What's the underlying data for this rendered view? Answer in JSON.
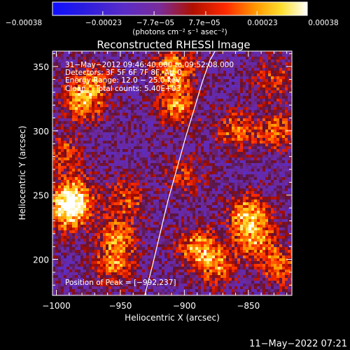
{
  "chart_data": {
    "type": "heatmap",
    "title": "Reconstructed RHESSI Image",
    "xlabel": "Heliocentric X (arcsec)",
    "ylabel": "Heliocentric Y (arcsec)",
    "xlim": [
      -1003,
      -816
    ],
    "ylim": [
      172,
      362
    ],
    "x_ticks": [
      -1000,
      -950,
      -900,
      -850
    ],
    "x_tick_labels": [
      "−1000",
      "−950",
      "−900",
      "−850"
    ],
    "y_ticks": [
      200,
      250,
      300,
      350
    ],
    "y_tick_labels": [
      "200",
      "250",
      "300",
      "350"
    ],
    "colorbar": {
      "colormap": "rhessi-blue-purple-red-yellow-white",
      "range": [
        -0.00038,
        0.00038
      ],
      "tick_values": [
        -0.00038,
        -0.00023,
        -7.7e-05,
        7.7e-05,
        0.00023,
        0.00038
      ],
      "tick_labels": [
        "−0.00038",
        "−0.00023",
        "−7.7e−05",
        "7.7e−05",
        "0.00023",
        "0.00038"
      ],
      "unit_label": "(photons cm⁻² s⁻¹ asec⁻²)"
    },
    "annotations": [
      "31−May−2012 09:46:40.000 to 09:52:08.000",
      "Detectors: 3F 5F 6F 7F 8F, Att 0",
      "Energy Range: 12.0 − 25.0 keV",
      "Clean    Total counts: 5.40E+03",
      "Position of Peak = [−992,237]"
    ],
    "peak_position": [
      -992,
      237
    ],
    "limb": {
      "description": "solar limb",
      "x": [
        -931,
        -925,
        -919,
        -913,
        -906,
        -899,
        -892,
        -886,
        -880,
        -876
      ],
      "y": [
        172,
        195,
        220,
        245,
        270,
        295,
        318,
        338,
        355,
        362
      ]
    },
    "hotspots": [
      {
        "x": -992,
        "y": 237,
        "intensity": 0.00038
      },
      {
        "x": -985,
        "y": 250,
        "intensity": 0.00032
      },
      {
        "x": -980,
        "y": 322,
        "intensity": 0.0003
      },
      {
        "x": -972,
        "y": 338,
        "intensity": 0.00022
      },
      {
        "x": -952,
        "y": 218,
        "intensity": 0.00027
      },
      {
        "x": -945,
        "y": 248,
        "intensity": 0.00022
      },
      {
        "x": -955,
        "y": 195,
        "intensity": 0.00025
      },
      {
        "x": -908,
        "y": 348,
        "intensity": 0.00033
      },
      {
        "x": -905,
        "y": 320,
        "intensity": 0.00028
      },
      {
        "x": -900,
        "y": 265,
        "intensity": 0.00018
      },
      {
        "x": -890,
        "y": 210,
        "intensity": 0.0003
      },
      {
        "x": -875,
        "y": 195,
        "intensity": 0.00026
      },
      {
        "x": -860,
        "y": 300,
        "intensity": 0.00025
      },
      {
        "x": -850,
        "y": 235,
        "intensity": 0.00035
      },
      {
        "x": -845,
        "y": 215,
        "intensity": 0.00028
      },
      {
        "x": -828,
        "y": 300,
        "intensity": 0.00024
      },
      {
        "x": -830,
        "y": 340,
        "intensity": 0.0002
      },
      {
        "x": -825,
        "y": 195,
        "intensity": 0.00024
      },
      {
        "x": -995,
        "y": 282,
        "intensity": 0.0002
      }
    ]
  },
  "footer": {
    "timestamp": "11−May−2022 07:21"
  }
}
